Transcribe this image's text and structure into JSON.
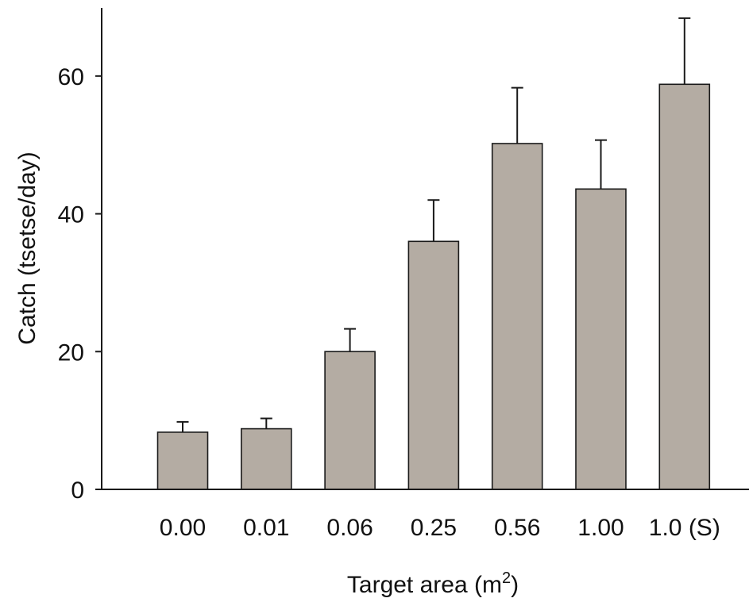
{
  "chart_data": {
    "type": "bar",
    "categories": [
      "0.00",
      "0.01",
      "0.06",
      "0.25",
      "0.56",
      "1.00",
      "1.0 (S)"
    ],
    "values": [
      8.3,
      8.8,
      20.0,
      36.0,
      50.2,
      43.6,
      58.8
    ],
    "error_upper": [
      9.8,
      10.3,
      23.3,
      42.0,
      58.3,
      50.7,
      68.4
    ],
    "xlabel": "Target area (m",
    "xlabel_sup": "2",
    "xlabel_end": ")",
    "ylabel": "Catch (tsetse/day)",
    "ylim": [
      0,
      70
    ],
    "yticks": [
      0,
      20,
      40,
      60
    ],
    "ytick_labels": [
      "0",
      "20",
      "40",
      "60"
    ],
    "grid": false,
    "legend": "none",
    "bar_color": "#b4aca3"
  }
}
